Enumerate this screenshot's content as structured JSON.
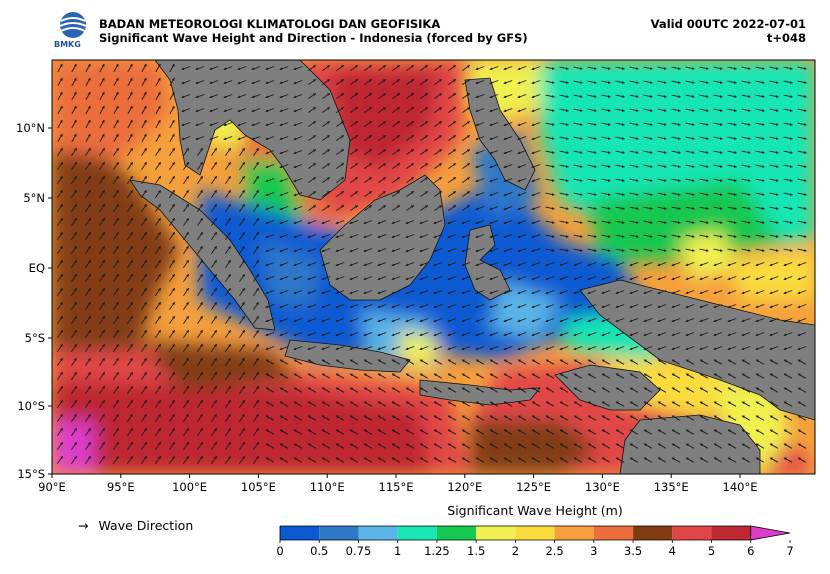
{
  "header": {
    "agency": "BADAN METEOROLOGI KLIMATOLOGI DAN GEOFISIKA",
    "subtitle": "Significant Wave Height and Direction - Indonesia (forced by GFS)",
    "valid": "Valid 00UTC 2022-07-01",
    "lead": "t+048",
    "logo_text": "BMKG"
  },
  "map": {
    "lon_ticks": [
      "90°E",
      "95°E",
      "100°E",
      "105°E",
      "110°E",
      "115°E",
      "120°E",
      "125°E",
      "130°E",
      "135°E",
      "140°E"
    ],
    "lat_ticks": [
      "10°N",
      "5°N",
      "EQ",
      "5°S",
      "10°S",
      "15°S"
    ],
    "land_color": "#7f7f7f",
    "arrow_color": "#1a1a1a"
  },
  "legend": {
    "direction_icon": "right-arrow-icon",
    "direction_arrow": "→",
    "direction_label": "Wave Direction",
    "colorbar_title": "Significant Wave Height (m)",
    "bounds": [
      "0",
      "0.5",
      "0.75",
      "1",
      "1.25",
      "1.5",
      "2",
      "2.5",
      "3",
      "3.5",
      "4",
      "5",
      "6",
      "7"
    ],
    "colors": [
      "#0a5ad2",
      "#2f78c8",
      "#5ab4e6",
      "#19e6b4",
      "#14c850",
      "#f0f050",
      "#fadc3c",
      "#f5a03c",
      "#eb6e3c",
      "#823c14",
      "#e14646",
      "#be2832",
      "#dc3cc8",
      "#a03c78"
    ]
  }
}
